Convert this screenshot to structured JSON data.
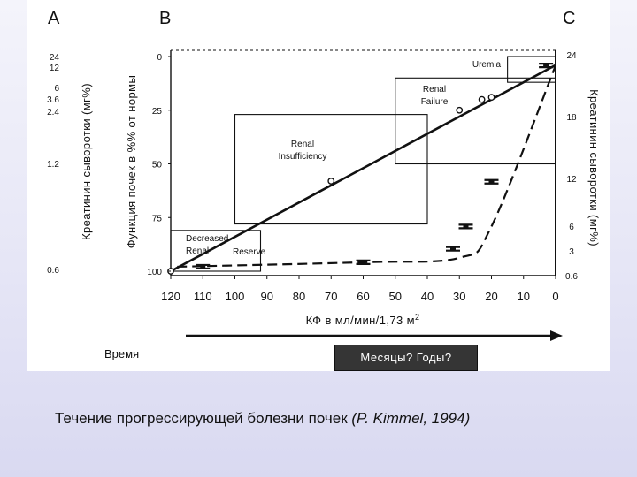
{
  "caption": {
    "text": "Течение прогрессирующей болезни почек ",
    "note": "(P. Kimmel, 1994)"
  },
  "time_label": "Время",
  "time_box_label": "Месяцы? Годы?",
  "chart_data": {
    "type": "line",
    "panel_letters": [
      "A",
      "B",
      "C"
    ],
    "x_label_main": "КФ в мл/мин/1,73 м",
    "x_label_sup": "2",
    "x_ticks": [
      120,
      110,
      100,
      90,
      80,
      70,
      60,
      50,
      40,
      30,
      20,
      10,
      0
    ],
    "xlim": [
      120,
      0
    ],
    "y_left_label": "Функция почек в %% от нормы",
    "y_left_ticks": [
      0,
      25,
      50,
      75,
      100
    ],
    "y_left_lim": [
      100,
      0
    ],
    "y_outer_label": "Креатинин сыворотки (мг%)",
    "y_outer_ticks": [
      24,
      12,
      6,
      3.6,
      2.4,
      1.2,
      0.6
    ],
    "y_right_label": "Креатинин сыворотки (мг%)",
    "y_right_ticks": [
      24,
      18,
      12,
      6,
      3,
      0.6
    ],
    "y_right_lim": [
      0,
      24
    ],
    "regions": [
      {
        "name": "Uremia",
        "x": [
          15,
          0
        ],
        "y": [
          0,
          12
        ]
      },
      {
        "name": "Renal Failure",
        "x": [
          50,
          0
        ],
        "y": [
          10,
          50
        ]
      },
      {
        "name": "Renal Insufficiency",
        "x": [
          100,
          40
        ],
        "y": [
          27,
          78
        ]
      },
      {
        "name": "Decreased Renal Reserve",
        "x": [
          120,
          92
        ],
        "y": [
          81,
          100
        ]
      }
    ],
    "series": [
      {
        "values": {
          "x": [
            120,
            70,
            30,
            20,
            0
          ],
          "y": [
            100,
            60,
            26,
            20,
            4
          ]
        }
      },
      {
        "values": {
          "x": [
            118,
            60,
            30,
            20,
            0
          ],
          "y": [
            0.5,
            1,
            1.5,
            5,
            23
          ]
        }
      }
    ],
    "points_circle": [
      {
        "x": 120,
        "y": 100
      },
      {
        "x": 70,
        "y": 58
      },
      {
        "x": 30,
        "y": 25
      },
      {
        "x": 23,
        "y": 20
      },
      {
        "x": 20,
        "y": 19
      }
    ],
    "points_bar": [
      {
        "x": 110,
        "y": 0.5
      },
      {
        "x": 60,
        "y": 1
      },
      {
        "x": 32,
        "y": 2.5
      },
      {
        "x": 28,
        "y": 5
      },
      {
        "x": 20,
        "y": 10
      },
      {
        "x": 3,
        "y": 23
      }
    ]
  }
}
